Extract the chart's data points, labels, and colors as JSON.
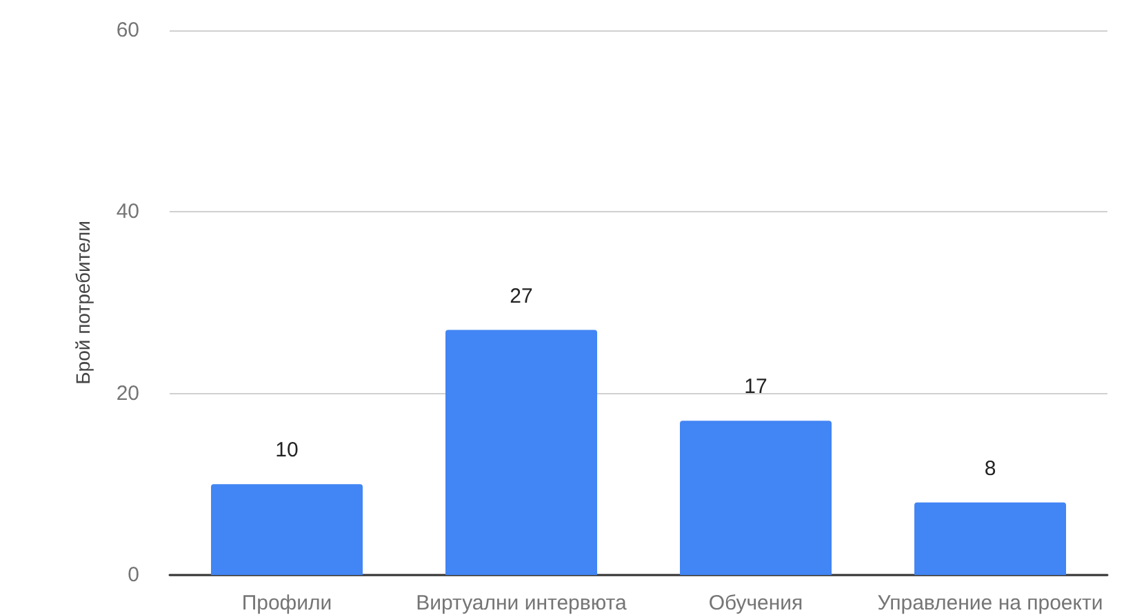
{
  "chart_data": {
    "type": "bar",
    "ylabel": "Брой потребители",
    "categories": [
      "Профили",
      "Виртуални интервюта",
      "Обучения",
      "Управление на проекти"
    ],
    "values": [
      10,
      27,
      17,
      8
    ],
    "color": "#4285f4",
    "ylim": [
      0,
      60
    ],
    "yticks": [
      0,
      20,
      40,
      60
    ],
    "grid": "y",
    "data_labels": true
  }
}
